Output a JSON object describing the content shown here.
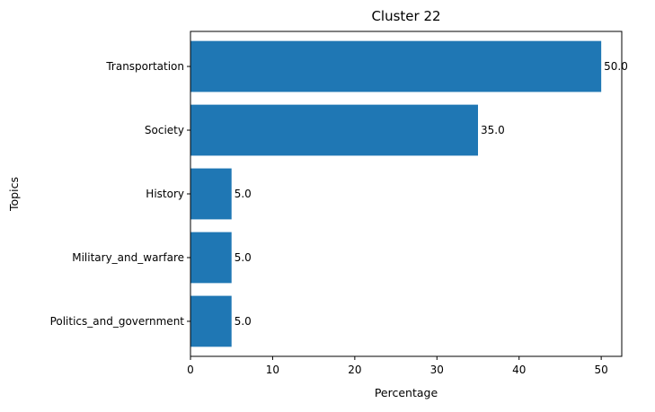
{
  "chart_data": {
    "type": "bar",
    "orientation": "horizontal",
    "title": "Cluster 22",
    "xlabel": "Percentage",
    "ylabel": "Topics",
    "categories": [
      "Transportation",
      "Society",
      "History",
      "Military_and_warfare",
      "Politics_and_government"
    ],
    "values": [
      50.0,
      35.0,
      5.0,
      5.0,
      5.0
    ],
    "data_labels": [
      "50.0",
      "35.0",
      "5.0",
      "5.0",
      "5.0"
    ],
    "xlim": [
      0,
      52.5
    ],
    "xticks": [
      0,
      10,
      20,
      30,
      40,
      50
    ],
    "xtick_labels": [
      "0",
      "10",
      "20",
      "30",
      "40",
      "50"
    ],
    "grid": false,
    "legend": "none",
    "colors": {
      "bar": "#1f77b4",
      "axes": "#000000",
      "background": "#ffffff"
    }
  }
}
